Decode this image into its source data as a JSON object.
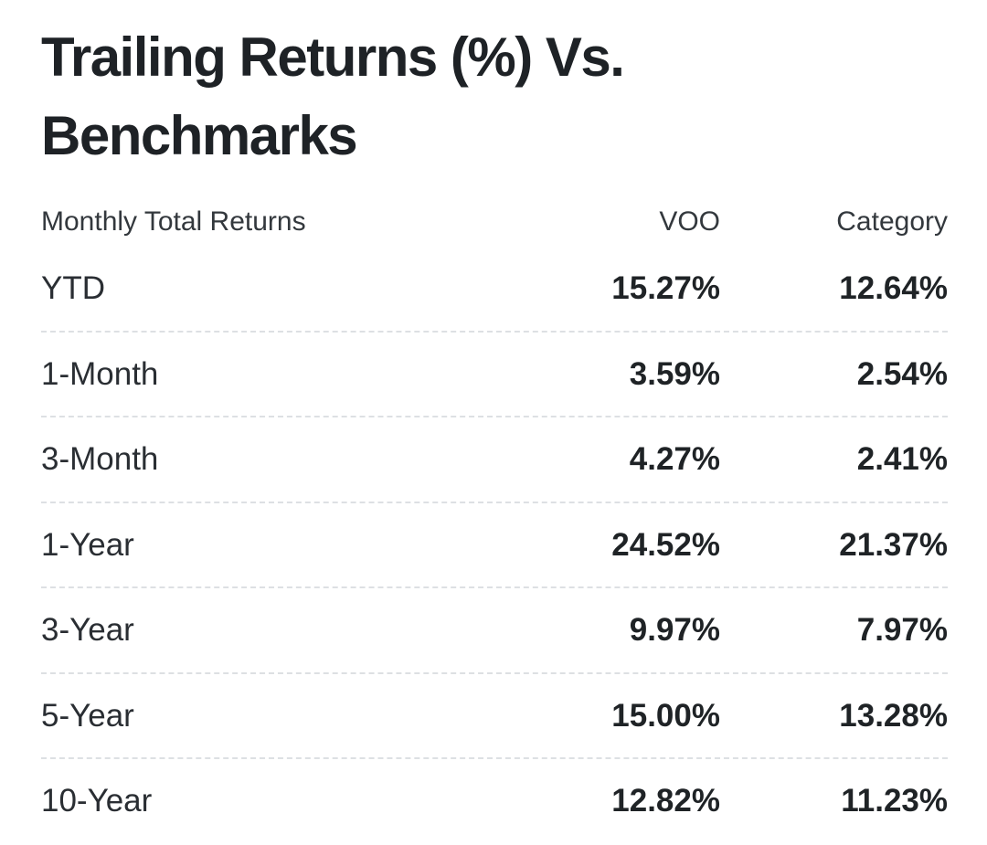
{
  "title": "Trailing Returns (%) Vs. Benchmarks",
  "table": {
    "headers": {
      "label": "Monthly Total Returns",
      "voo": "VOO",
      "category": "Category"
    },
    "rows": [
      {
        "label": "YTD",
        "voo": "15.27%",
        "category": "12.64%"
      },
      {
        "label": "1-Month",
        "voo": "3.59%",
        "category": "2.54%"
      },
      {
        "label": "3-Month",
        "voo": "4.27%",
        "category": "2.41%"
      },
      {
        "label": "1-Year",
        "voo": "24.52%",
        "category": "21.37%"
      },
      {
        "label": "3-Year",
        "voo": "9.97%",
        "category": "7.97%"
      },
      {
        "label": "5-Year",
        "voo": "15.00%",
        "category": "13.28%"
      },
      {
        "label": "10-Year",
        "voo": "12.82%",
        "category": "11.23%"
      }
    ]
  }
}
